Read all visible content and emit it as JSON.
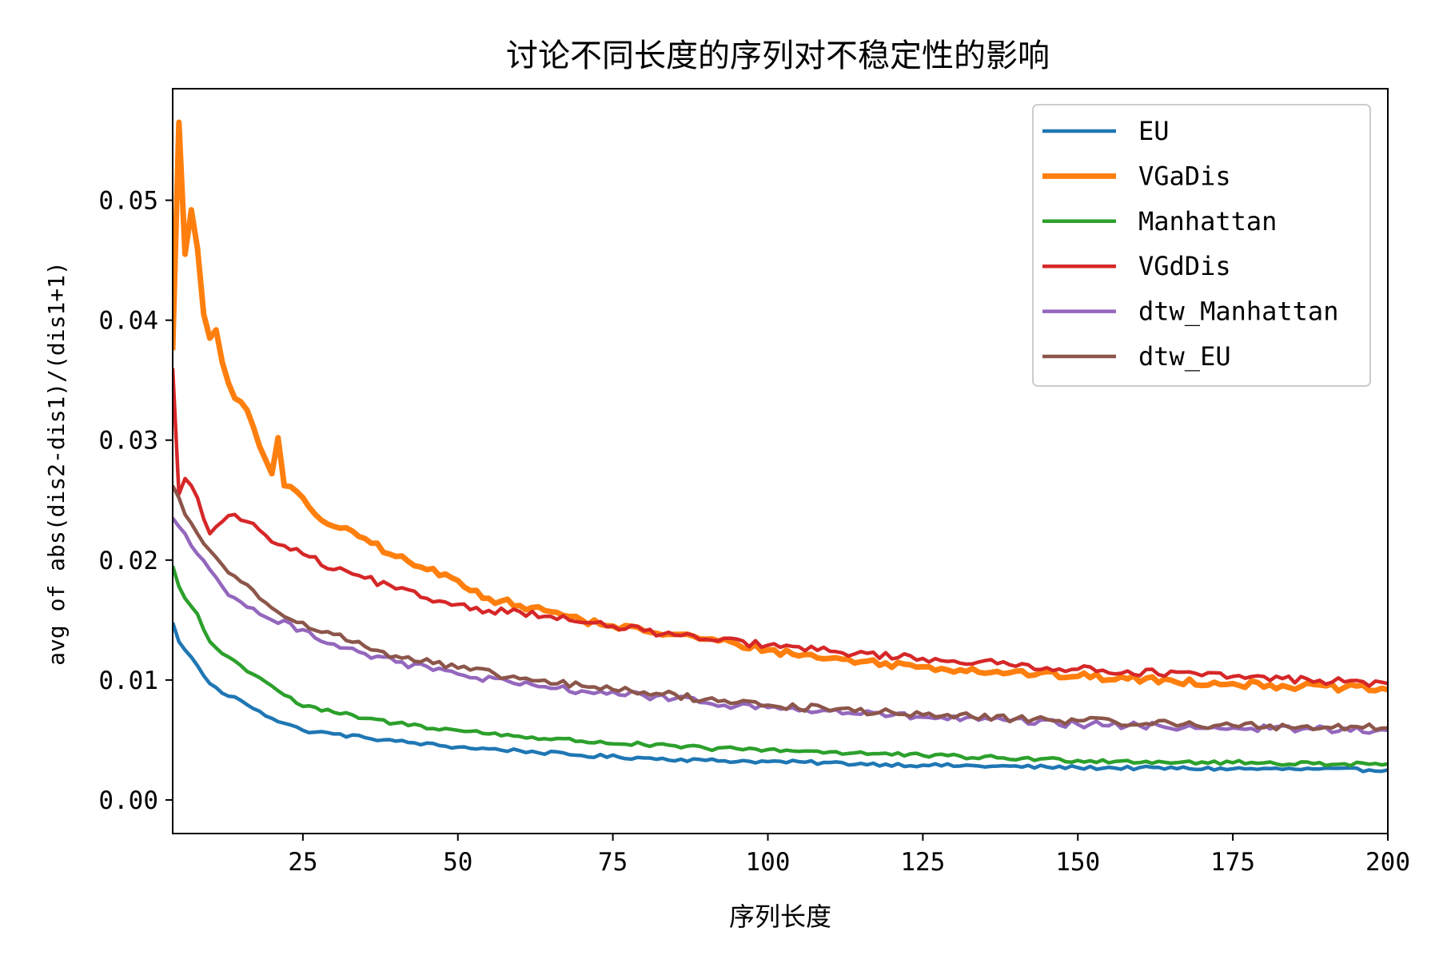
{
  "chart_data": {
    "type": "line",
    "title": "讨论不同长度的序列对不稳定性的影响",
    "xlabel": "序列长度",
    "ylabel": "avg of abs(dis2-dis1)/(dis1+1)",
    "xlim": [
      4,
      200
    ],
    "ylim": [
      -0.0028,
      0.0593
    ],
    "xticks": [
      25,
      50,
      75,
      100,
      125,
      150,
      175,
      200
    ],
    "yticks": [
      0.0,
      0.01,
      0.02,
      0.03,
      0.04,
      0.05
    ],
    "xtick_labels": [
      "25",
      "50",
      "75",
      "100",
      "125",
      "150",
      "175",
      "200"
    ],
    "ytick_labels": [
      "0.00",
      "0.01",
      "0.02",
      "0.03",
      "0.04",
      "0.05"
    ],
    "grid": false,
    "legend_position": "top-right",
    "x_start": 4,
    "x_end": 200,
    "series": [
      {
        "name": "EU",
        "color": "#1f77b4",
        "anchors": [
          [
            4,
            0.0148
          ],
          [
            5,
            0.0132
          ],
          [
            6,
            0.0125
          ],
          [
            8,
            0.0112
          ],
          [
            10,
            0.0097
          ],
          [
            12,
            0.0089
          ],
          [
            15,
            0.0083
          ],
          [
            18,
            0.0074
          ],
          [
            20,
            0.0068
          ],
          [
            25,
            0.0058
          ],
          [
            30,
            0.0055
          ],
          [
            35,
            0.0052
          ],
          [
            40,
            0.0049
          ],
          [
            50,
            0.0044
          ],
          [
            60,
            0.0041
          ],
          [
            70,
            0.0037
          ],
          [
            80,
            0.0035
          ],
          [
            90,
            0.0033
          ],
          [
            100,
            0.0032
          ],
          [
            125,
            0.0029
          ],
          [
            150,
            0.0027
          ],
          [
            175,
            0.0026
          ],
          [
            200,
            0.0025
          ]
        ],
        "noise": 0.00015
      },
      {
        "name": "VGaDis",
        "color": "#ff7f0e",
        "anchors": [
          [
            4,
            0.0375
          ],
          [
            5,
            0.0565
          ],
          [
            6,
            0.0455
          ],
          [
            7,
            0.0492
          ],
          [
            8,
            0.046
          ],
          [
            9,
            0.0405
          ],
          [
            10,
            0.0385
          ],
          [
            11,
            0.0392
          ],
          [
            12,
            0.0365
          ],
          [
            14,
            0.0335
          ],
          [
            16,
            0.0325
          ],
          [
            18,
            0.0295
          ],
          [
            20,
            0.0272
          ],
          [
            21,
            0.0302
          ],
          [
            22,
            0.0262
          ],
          [
            25,
            0.0252
          ],
          [
            27,
            0.0238
          ],
          [
            30,
            0.0228
          ],
          [
            35,
            0.0218
          ],
          [
            40,
            0.0203
          ],
          [
            45,
            0.0192
          ],
          [
            50,
            0.0183
          ],
          [
            55,
            0.0168
          ],
          [
            60,
            0.0162
          ],
          [
            65,
            0.0157
          ],
          [
            70,
            0.015
          ],
          [
            75,
            0.0145
          ],
          [
            80,
            0.0141
          ],
          [
            85,
            0.0138
          ],
          [
            90,
            0.0134
          ],
          [
            95,
            0.013
          ],
          [
            100,
            0.0125
          ],
          [
            110,
            0.0118
          ],
          [
            125,
            0.0111
          ],
          [
            150,
            0.0103
          ],
          [
            175,
            0.0097
          ],
          [
            200,
            0.0092
          ]
        ],
        "noise": 0.0003
      },
      {
        "name": "Manhattan",
        "color": "#2ca02c",
        "anchors": [
          [
            4,
            0.0195
          ],
          [
            5,
            0.0178
          ],
          [
            6,
            0.0168
          ],
          [
            8,
            0.0155
          ],
          [
            9,
            0.0142
          ],
          [
            10,
            0.0132
          ],
          [
            12,
            0.0122
          ],
          [
            15,
            0.0112
          ],
          [
            18,
            0.0102
          ],
          [
            20,
            0.0095
          ],
          [
            25,
            0.0078
          ],
          [
            30,
            0.0073
          ],
          [
            35,
            0.0068
          ],
          [
            40,
            0.0064
          ],
          [
            50,
            0.0058
          ],
          [
            60,
            0.0053
          ],
          [
            70,
            0.0049
          ],
          [
            80,
            0.0046
          ],
          [
            90,
            0.0043
          ],
          [
            100,
            0.0042
          ],
          [
            110,
            0.004
          ],
          [
            125,
            0.0037
          ],
          [
            150,
            0.0033
          ],
          [
            175,
            0.0031
          ],
          [
            200,
            0.003
          ]
        ],
        "noise": 0.00018
      },
      {
        "name": "VGdDis",
        "color": "#d62728",
        "anchors": [
          [
            4,
            0.036
          ],
          [
            5,
            0.0255
          ],
          [
            6,
            0.0268
          ],
          [
            8,
            0.0252
          ],
          [
            10,
            0.0222
          ],
          [
            12,
            0.0232
          ],
          [
            14,
            0.0238
          ],
          [
            16,
            0.0232
          ],
          [
            18,
            0.0225
          ],
          [
            20,
            0.0215
          ],
          [
            22,
            0.0212
          ],
          [
            25,
            0.0205
          ],
          [
            30,
            0.0192
          ],
          [
            35,
            0.0185
          ],
          [
            40,
            0.0176
          ],
          [
            45,
            0.0168
          ],
          [
            50,
            0.0163
          ],
          [
            55,
            0.0158
          ],
          [
            60,
            0.0157
          ],
          [
            65,
            0.0153
          ],
          [
            70,
            0.0148
          ],
          [
            75,
            0.0145
          ],
          [
            80,
            0.0141
          ],
          [
            90,
            0.0134
          ],
          [
            100,
            0.0129
          ],
          [
            110,
            0.0124
          ],
          [
            125,
            0.0118
          ],
          [
            150,
            0.0109
          ],
          [
            175,
            0.0103
          ],
          [
            200,
            0.0097
          ]
        ],
        "noise": 0.0003
      },
      {
        "name": "dtw_Manhattan",
        "color": "#9467bd",
        "anchors": [
          [
            4,
            0.0235
          ],
          [
            5,
            0.0228
          ],
          [
            6,
            0.0222
          ],
          [
            8,
            0.0205
          ],
          [
            10,
            0.0192
          ],
          [
            12,
            0.0178
          ],
          [
            15,
            0.0165
          ],
          [
            18,
            0.0155
          ],
          [
            20,
            0.015
          ],
          [
            25,
            0.0142
          ],
          [
            30,
            0.013
          ],
          [
            35,
            0.0122
          ],
          [
            40,
            0.0115
          ],
          [
            50,
            0.0105
          ],
          [
            60,
            0.0096
          ],
          [
            70,
            0.0091
          ],
          [
            80,
            0.0087
          ],
          [
            90,
            0.0081
          ],
          [
            100,
            0.0077
          ],
          [
            125,
            0.0069
          ],
          [
            150,
            0.0063
          ],
          [
            175,
            0.006
          ],
          [
            200,
            0.0058
          ]
        ],
        "noise": 0.0003
      },
      {
        "name": "dtw_EU",
        "color": "#8c564b",
        "anchors": [
          [
            4,
            0.0262
          ],
          [
            5,
            0.0252
          ],
          [
            6,
            0.0238
          ],
          [
            8,
            0.0222
          ],
          [
            10,
            0.0208
          ],
          [
            12,
            0.0196
          ],
          [
            15,
            0.0182
          ],
          [
            18,
            0.0168
          ],
          [
            20,
            0.016
          ],
          [
            25,
            0.0148
          ],
          [
            30,
            0.0138
          ],
          [
            35,
            0.0128
          ],
          [
            40,
            0.012
          ],
          [
            50,
            0.011
          ],
          [
            60,
            0.0101
          ],
          [
            70,
            0.0095
          ],
          [
            80,
            0.009
          ],
          [
            90,
            0.0084
          ],
          [
            100,
            0.0079
          ],
          [
            125,
            0.0071
          ],
          [
            150,
            0.0066
          ],
          [
            175,
            0.0062
          ],
          [
            200,
            0.006
          ]
        ],
        "noise": 0.0003
      }
    ]
  }
}
